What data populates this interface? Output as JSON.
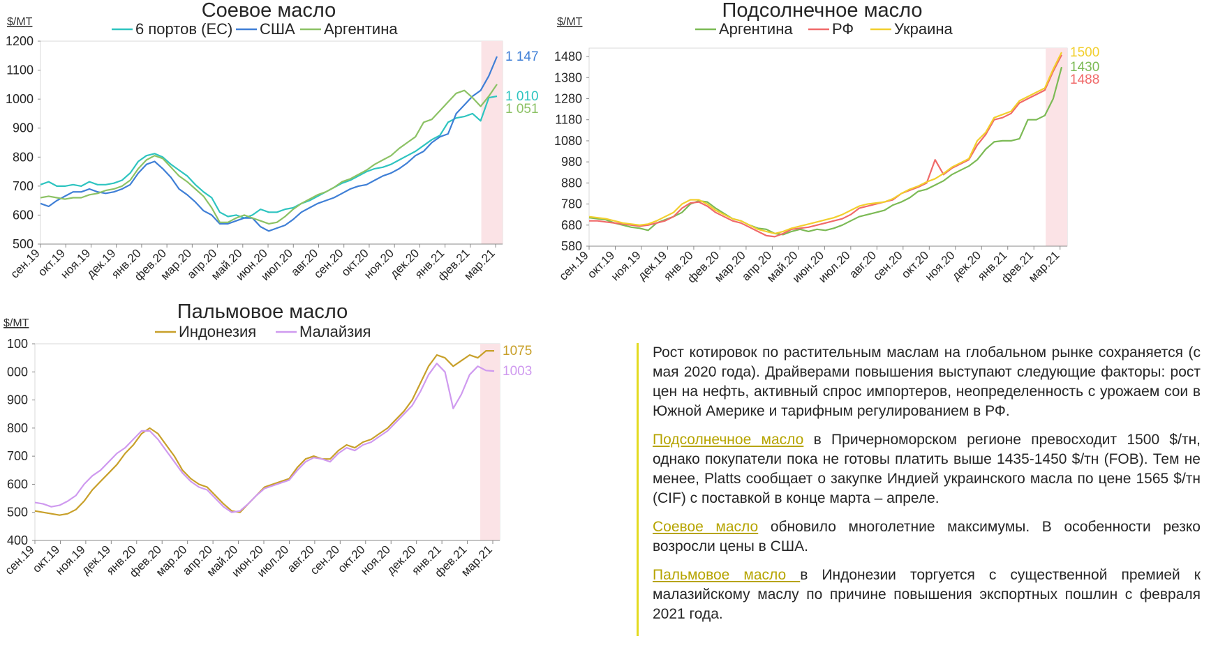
{
  "colors": {
    "teal": "#2ec4c0",
    "blue": "#3f7fd6",
    "green": "#8cc265",
    "sun_arg": "#7cba55",
    "sun_rf": "#f06a6a",
    "sun_ukr": "#f2cf2d",
    "indonesia": "#c8a02a",
    "malaysia": "#cf9aef",
    "highlight": "#fbe3e6",
    "accent_bar": "#e3da1f",
    "accent_text": "#b6a400"
  },
  "chart_data": [
    {
      "id": "soy",
      "type": "line",
      "title": "Соевое масло",
      "unit": "$/MT",
      "ylim": [
        500,
        1200
      ],
      "yticks": [
        "500",
        "600",
        "700",
        "800",
        "900",
        "1000",
        "1100",
        "1200"
      ],
      "x_labels": [
        "сен.19",
        "окт.19",
        "ноя.19",
        "дек.19",
        "янв.20",
        "фев.20",
        "мар.20",
        "апр.20",
        "май.20",
        "июн.20",
        "июл.20",
        "авг.20",
        "сен.20",
        "окт.20",
        "ноя.20",
        "дек.20",
        "янв.21",
        "фев.21",
        "мар.21"
      ],
      "legend_position": "top",
      "series": [
        {
          "name": "6 портов (ЕС)",
          "color_key": "teal",
          "end_label": "1 010",
          "values": [
            705,
            715,
            700,
            700,
            705,
            700,
            715,
            705,
            705,
            710,
            720,
            745,
            785,
            805,
            812,
            800,
            775,
            755,
            735,
            705,
            680,
            660,
            610,
            595,
            600,
            590,
            600,
            620,
            610,
            610,
            620,
            625,
            640,
            650,
            665,
            680,
            695,
            710,
            720,
            735,
            750,
            760,
            765,
            775,
            790,
            805,
            820,
            840,
            860,
            875,
            920,
            935,
            940,
            950,
            925,
            1005,
            1010
          ]
        },
        {
          "name": "США",
          "color_key": "blue",
          "end_label": "1 147",
          "values": [
            640,
            630,
            650,
            665,
            680,
            680,
            690,
            680,
            675,
            680,
            690,
            705,
            745,
            775,
            785,
            760,
            730,
            690,
            670,
            645,
            615,
            600,
            570,
            570,
            580,
            590,
            590,
            560,
            545,
            555,
            565,
            585,
            610,
            625,
            640,
            650,
            660,
            675,
            690,
            700,
            705,
            720,
            735,
            745,
            760,
            780,
            805,
            820,
            850,
            870,
            880,
            950,
            980,
            1010,
            1030,
            1080,
            1147
          ]
        },
        {
          "name": "Аргентина",
          "color_key": "green",
          "end_label": "1 051",
          "values": [
            660,
            665,
            660,
            655,
            660,
            660,
            670,
            675,
            685,
            690,
            700,
            720,
            760,
            790,
            805,
            795,
            765,
            735,
            715,
            690,
            665,
            625,
            575,
            575,
            590,
            600,
            590,
            580,
            570,
            575,
            595,
            620,
            640,
            655,
            670,
            680,
            695,
            715,
            725,
            740,
            755,
            775,
            790,
            805,
            830,
            850,
            870,
            920,
            930,
            960,
            990,
            1020,
            1030,
            1005,
            975,
            1010,
            1051
          ]
        }
      ]
    },
    {
      "id": "sun",
      "type": "line",
      "title": "Подсолнечное масло",
      "unit": "$/MT",
      "ylim": [
        580,
        1520
      ],
      "yticks": [
        "580",
        "680",
        "780",
        "880",
        "980",
        "1080",
        "1180",
        "1280",
        "1380",
        "1480"
      ],
      "x_labels": [
        "сен.19",
        "окт.19",
        "ноя.19",
        "дек.19",
        "янв.20",
        "фев.20",
        "мар.20",
        "апр.20",
        "май.20",
        "июн.20",
        "июл.20",
        "авг.20",
        "сен.20",
        "окт.20",
        "ноя.20",
        "дек.20",
        "янв.21",
        "фев.21",
        "мар.21"
      ],
      "legend_position": "top",
      "series": [
        {
          "name": "Аргентина",
          "color_key": "sun_arg",
          "end_label": "1430",
          "values": [
            715,
            710,
            705,
            690,
            680,
            670,
            665,
            655,
            690,
            705,
            720,
            740,
            780,
            795,
            790,
            760,
            735,
            710,
            700,
            680,
            665,
            660,
            640,
            635,
            650,
            660,
            650,
            660,
            655,
            665,
            680,
            700,
            720,
            730,
            740,
            750,
            775,
            790,
            810,
            840,
            850,
            870,
            890,
            920,
            940,
            960,
            990,
            1040,
            1075,
            1080,
            1080,
            1090,
            1180,
            1180,
            1200,
            1280,
            1430
          ]
        },
        {
          "name": "РФ",
          "color_key": "sun_rf",
          "end_label": "1488",
          "values": [
            700,
            700,
            695,
            690,
            685,
            680,
            675,
            680,
            690,
            700,
            720,
            760,
            785,
            790,
            770,
            740,
            720,
            700,
            690,
            670,
            650,
            630,
            625,
            640,
            660,
            665,
            670,
            680,
            690,
            700,
            710,
            730,
            760,
            770,
            780,
            790,
            800,
            830,
            845,
            860,
            880,
            990,
            920,
            950,
            970,
            990,
            1060,
            1110,
            1180,
            1190,
            1210,
            1260,
            1280,
            1300,
            1320,
            1410,
            1488
          ]
        },
        {
          "name": "Украина",
          "color_key": "sun_ukr",
          "end_label": "1500",
          "values": [
            720,
            715,
            710,
            700,
            690,
            685,
            680,
            685,
            700,
            720,
            740,
            780,
            800,
            800,
            780,
            750,
            730,
            710,
            700,
            680,
            660,
            650,
            640,
            650,
            665,
            675,
            685,
            695,
            705,
            715,
            730,
            750,
            770,
            780,
            785,
            790,
            805,
            830,
            850,
            865,
            885,
            900,
            925,
            955,
            975,
            995,
            1080,
            1120,
            1190,
            1205,
            1220,
            1270,
            1290,
            1310,
            1330,
            1420,
            1500
          ]
        }
      ]
    },
    {
      "id": "palm",
      "type": "line",
      "title": "Пальмовое масло",
      "unit": "$/MT",
      "ylim": [
        400,
        1100
      ],
      "yticks": [
        "400",
        "500",
        "600",
        "700",
        "800",
        "900",
        "000",
        "100"
      ],
      "x_labels": [
        "сен.19",
        "окт.19",
        "ноя.19",
        "дек.19",
        "янв.20",
        "фев.20",
        "мар.20",
        "апр.20",
        "май.20",
        "июн.20",
        "июл.20",
        "авг.20",
        "сен.20",
        "окт.20",
        "ноя.20",
        "дек.20",
        "янв.21",
        "фев.21",
        "мар.21"
      ],
      "legend_position": "top",
      "series": [
        {
          "name": "Индонезия",
          "color_key": "indonesia",
          "end_label": "1075",
          "values": [
            505,
            500,
            495,
            490,
            495,
            510,
            540,
            580,
            610,
            640,
            670,
            710,
            740,
            780,
            800,
            780,
            740,
            700,
            650,
            620,
            600,
            590,
            560,
            530,
            505,
            500,
            530,
            560,
            590,
            600,
            610,
            620,
            660,
            690,
            700,
            690,
            690,
            720,
            740,
            730,
            750,
            760,
            780,
            800,
            830,
            860,
            900,
            960,
            1020,
            1060,
            1050,
            1020,
            1040,
            1060,
            1050,
            1075,
            1075
          ]
        },
        {
          "name": "Малайзия",
          "color_key": "malaysia",
          "end_label": "1003",
          "values": [
            535,
            530,
            520,
            525,
            540,
            560,
            600,
            630,
            650,
            680,
            710,
            730,
            760,
            790,
            790,
            760,
            720,
            680,
            640,
            610,
            590,
            580,
            550,
            520,
            500,
            505,
            530,
            560,
            585,
            595,
            605,
            615,
            650,
            680,
            695,
            690,
            680,
            710,
            730,
            720,
            740,
            750,
            770,
            790,
            820,
            850,
            880,
            930,
            990,
            1030,
            1000,
            870,
            920,
            990,
            1020,
            1005,
            1003
          ]
        }
      ]
    }
  ],
  "text": {
    "p1": "Рост котировок по растительным маслам на глобальном рынке сохраняется (с мая 2020 года). Драйверами повышения выступают следующие факторы: рост цен на нефть, активный спрос импортеров, неопределенность с урожаем сои в Южной Америке и тарифным регулированием в РФ.",
    "p2_link": "Подсолнечное масло",
    "p2": " в Причерноморском регионе превосходит 1500 $/тн, однако покупатели пока не готовы платить выше 1435-1450 $/тн (FOB). Тем не менее, Platts сообщает о закупке Индией украинского масла по цене 1565 $/тн (CIF) с поставкой в конце марта – апреле.",
    "p3_link": "Соевое масло",
    "p3": " обновило многолетние максимумы. В особенности резко возросли цены в США.",
    "p4_link": "Пальмовое масло ",
    "p4": "в Индонезии торгуется с существенной премией к малазийскому маслу по причине повышения экспортных пошлин с февраля 2021 года."
  }
}
